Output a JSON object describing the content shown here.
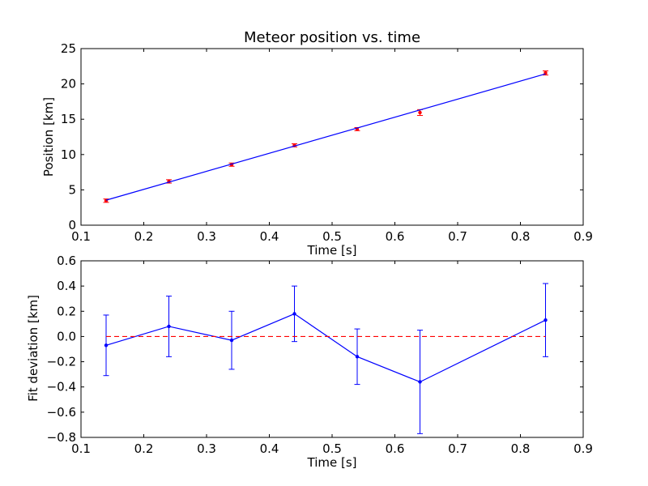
{
  "chart_data": [
    {
      "type": "scatter",
      "title": "Meteor position vs. time",
      "xlabel": "Time [s]",
      "ylabel": "Position [km]",
      "xlim": [
        0.1,
        0.9
      ],
      "ylim": [
        0,
        25
      ],
      "xticks": [
        "0.1",
        "0.2",
        "0.3",
        "0.4",
        "0.5",
        "0.6",
        "0.7",
        "0.8",
        "0.9"
      ],
      "yticks": [
        "0",
        "5",
        "10",
        "15",
        "20",
        "25"
      ],
      "grid": false,
      "series": [
        {
          "style": "points-with-error-bars",
          "color": "#ff0000",
          "x": [
            0.14,
            0.24,
            0.34,
            0.44,
            0.54,
            0.64,
            0.84
          ],
          "y": [
            3.47,
            6.2,
            8.57,
            11.31,
            13.6,
            15.95,
            21.55
          ],
          "yerr": [
            0.24,
            0.24,
            0.23,
            0.22,
            0.22,
            0.41,
            0.29
          ]
        },
        {
          "style": "line",
          "color": "#0000ff",
          "x": [
            0.14,
            0.84
          ],
          "y": [
            3.54,
            21.42
          ]
        }
      ]
    },
    {
      "type": "line",
      "title": "",
      "xlabel": "Time [s]",
      "ylabel": "Fit deviation [km]",
      "xlim": [
        0.1,
        0.9
      ],
      "ylim": [
        -0.8,
        0.6
      ],
      "xticks": [
        "0.1",
        "0.2",
        "0.3",
        "0.4",
        "0.5",
        "0.6",
        "0.7",
        "0.8",
        "0.9"
      ],
      "yticks": [
        "0.6",
        "0.4",
        "0.2",
        "0.0",
        "−0.2",
        "−0.4",
        "−0.6",
        "−0.8"
      ],
      "grid": false,
      "series": [
        {
          "style": "line-markers-with-error-bars",
          "color": "#0000ff",
          "x": [
            0.14,
            0.24,
            0.34,
            0.44,
            0.54,
            0.64,
            0.84
          ],
          "y": [
            -0.07,
            0.08,
            -0.03,
            0.18,
            -0.16,
            -0.36,
            0.13
          ],
          "yerr": [
            0.24,
            0.24,
            0.23,
            0.22,
            0.22,
            0.41,
            0.29
          ]
        },
        {
          "style": "dashed-line",
          "color": "#ff0000",
          "x": [
            0.14,
            0.84
          ],
          "y": [
            0.0,
            0.0
          ]
        }
      ]
    }
  ]
}
